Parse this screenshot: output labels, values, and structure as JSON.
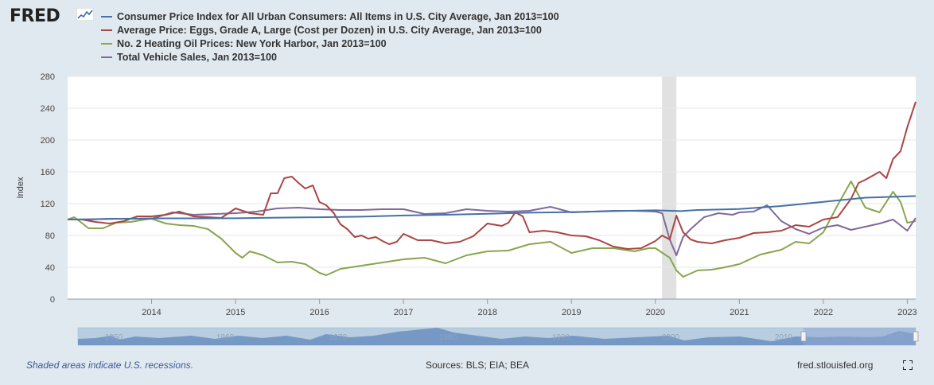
{
  "header": {
    "logo_text": "FRED",
    "logo_mark": "logo-graph-icon"
  },
  "legend": [
    {
      "label": "Consumer Price Index for All Urban Consumers: All Items in U.S. City Average, Jan 2013=100",
      "color": "#4572a7"
    },
    {
      "label": "Average Price: Eggs, Grade A, Large (Cost per Dozen) in U.S. City Average, Jan 2013=100",
      "color": "#aa4643"
    },
    {
      "label": "No. 2 Heating Oil Prices: New York Harbor, Jan 2013=100",
      "color": "#89a54e"
    },
    {
      "label": "Total Vehicle Sales, Jan 2013=100",
      "color": "#80699b"
    }
  ],
  "chart_data": {
    "type": "line",
    "title": "",
    "xlabel": "",
    "ylabel": "Index",
    "ylim": [
      0,
      280
    ],
    "yticks": [
      0,
      40,
      80,
      120,
      160,
      200,
      240,
      280
    ],
    "xlim": [
      2013.0,
      2023.1
    ],
    "xticks": [
      "2014",
      "2015",
      "2016",
      "2017",
      "2018",
      "2019",
      "2020",
      "2021",
      "2022",
      "2023"
    ],
    "recession": {
      "start": 2020.08,
      "end": 2020.25
    },
    "series": [
      {
        "name": "Consumer Price Index for All Urban Consumers: All Items in U.S. City Average, Jan 2013=100",
        "color": "#4572a7",
        "x": [
          2013.0,
          2014.0,
          2015.0,
          2015.5,
          2016.0,
          2016.5,
          2017.0,
          2017.5,
          2018.0,
          2018.5,
          2019.0,
          2019.5,
          2020.0,
          2020.3,
          2020.5,
          2021.0,
          2021.5,
          2022.0,
          2022.5,
          2023.1
        ],
        "y": [
          100,
          101.5,
          101.6,
          102.4,
          102.9,
          103.6,
          105.1,
          106.0,
          107.3,
          108.6,
          109.4,
          110.6,
          111.6,
          110.6,
          112.0,
          113.2,
          117.0,
          122.2,
          127.5,
          129.5
        ]
      },
      {
        "name": "Average Price: Eggs, Grade A, Large (Cost per Dozen) in U.S. City Average, Jan 2013=100",
        "color": "#aa4643",
        "x": [
          2013.0,
          2013.17,
          2013.33,
          2013.5,
          2013.67,
          2013.83,
          2014.0,
          2014.17,
          2014.33,
          2014.5,
          2014.67,
          2014.83,
          2015.0,
          2015.17,
          2015.33,
          2015.42,
          2015.5,
          2015.58,
          2015.67,
          2015.75,
          2015.83,
          2015.92,
          2016.0,
          2016.08,
          2016.17,
          2016.25,
          2016.33,
          2016.42,
          2016.5,
          2016.58,
          2016.67,
          2016.75,
          2016.83,
          2016.92,
          2017.0,
          2017.17,
          2017.33,
          2017.5,
          2017.67,
          2017.83,
          2018.0,
          2018.17,
          2018.25,
          2018.33,
          2018.42,
          2018.5,
          2018.67,
          2018.83,
          2019.0,
          2019.17,
          2019.33,
          2019.5,
          2019.67,
          2019.83,
          2020.0,
          2020.08,
          2020.17,
          2020.25,
          2020.33,
          2020.42,
          2020.5,
          2020.67,
          2020.83,
          2021.0,
          2021.17,
          2021.33,
          2021.5,
          2021.67,
          2021.83,
          2022.0,
          2022.17,
          2022.33,
          2022.42,
          2022.5,
          2022.67,
          2022.75,
          2022.83,
          2022.92,
          2023.0,
          2023.1
        ],
        "y": [
          100,
          100,
          97,
          95,
          98,
          104,
          104,
          106,
          110,
          104,
          103,
          102,
          114,
          108,
          106,
          133,
          133,
          152,
          154,
          146,
          139,
          143,
          122,
          118,
          108,
          94,
          88,
          78,
          80,
          76,
          78,
          73,
          69,
          72,
          82,
          74,
          74,
          70,
          72,
          79,
          95,
          92,
          96,
          109,
          104,
          84,
          86,
          84,
          80,
          79,
          74,
          66,
          63,
          64,
          73,
          80,
          75,
          105,
          84,
          75,
          72,
          70,
          74,
          77,
          83,
          84,
          86,
          93,
          91,
          100,
          103,
          126,
          146,
          150,
          160,
          152,
          176,
          186,
          216,
          248
        ]
      },
      {
        "name": "No. 2 Heating Oil Prices: New York Harbor, Jan 2013=100",
        "color": "#89a54e",
        "x": [
          2013.0,
          2013.08,
          2013.25,
          2013.42,
          2013.58,
          2013.75,
          2013.92,
          2014.0,
          2014.17,
          2014.33,
          2014.5,
          2014.67,
          2014.83,
          2015.0,
          2015.08,
          2015.17,
          2015.33,
          2015.5,
          2015.67,
          2015.83,
          2016.0,
          2016.08,
          2016.25,
          2016.5,
          2016.75,
          2017.0,
          2017.25,
          2017.5,
          2017.75,
          2018.0,
          2018.25,
          2018.5,
          2018.75,
          2019.0,
          2019.25,
          2019.5,
          2019.75,
          2019.92,
          2020.0,
          2020.17,
          2020.25,
          2020.33,
          2020.5,
          2020.67,
          2020.83,
          2021.0,
          2021.25,
          2021.5,
          2021.67,
          2021.83,
          2022.0,
          2022.17,
          2022.33,
          2022.5,
          2022.67,
          2022.83,
          2022.92,
          2023.0,
          2023.1
        ],
        "y": [
          100,
          103,
          89,
          89,
          96,
          97,
          100,
          101,
          95,
          93,
          92,
          88,
          76,
          58,
          52,
          60,
          55,
          46,
          47,
          44,
          33,
          30,
          38,
          42,
          46,
          50,
          52,
          45,
          55,
          60,
          61,
          69,
          72,
          58,
          64,
          64,
          60,
          64,
          64,
          52,
          36,
          28,
          36,
          37,
          40,
          44,
          56,
          62,
          72,
          70,
          84,
          118,
          148,
          115,
          109,
          135,
          122,
          96,
          98
        ]
      },
      {
        "name": "Total Vehicle Sales, Jan 2013=100",
        "color": "#80699b",
        "x": [
          2013.0,
          2013.25,
          2013.5,
          2013.75,
          2014.0,
          2014.25,
          2014.5,
          2014.75,
          2015.0,
          2015.25,
          2015.5,
          2015.75,
          2016.0,
          2016.25,
          2016.5,
          2016.75,
          2017.0,
          2017.25,
          2017.5,
          2017.75,
          2018.0,
          2018.25,
          2018.5,
          2018.75,
          2019.0,
          2019.25,
          2019.5,
          2019.75,
          2020.0,
          2020.08,
          2020.17,
          2020.25,
          2020.33,
          2020.42,
          2020.58,
          2020.75,
          2020.92,
          2021.0,
          2021.17,
          2021.33,
          2021.5,
          2021.67,
          2021.83,
          2022.0,
          2022.17,
          2022.33,
          2022.5,
          2022.67,
          2022.83,
          2023.0,
          2023.1
        ],
        "y": [
          100,
          100,
          101,
          101,
          101,
          109,
          106,
          107,
          108,
          110,
          114,
          115,
          113,
          112,
          112,
          113,
          113,
          107,
          108,
          113,
          111,
          110,
          111,
          116,
          109,
          110,
          111,
          111,
          110,
          108,
          75,
          55,
          78,
          88,
          103,
          108,
          106,
          109,
          110,
          118,
          98,
          88,
          82,
          90,
          93,
          87,
          91,
          95,
          100,
          86,
          102
        ]
      }
    ]
  },
  "navigator": {
    "labels": [
      "1950",
      "1960",
      "1970",
      "1980",
      "1990",
      "2000",
      "2010",
      "2020"
    ]
  },
  "footer": {
    "note": "Shaded areas indicate U.S. recessions.",
    "sources": "Sources: BLS; EIA; BEA",
    "site": "fred.stlouisfed.org"
  }
}
